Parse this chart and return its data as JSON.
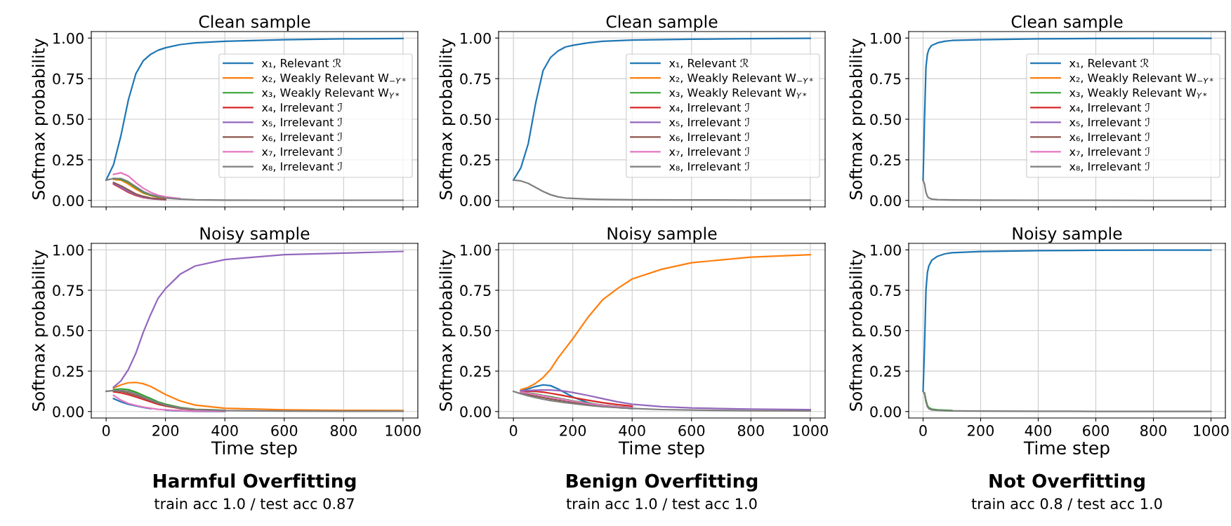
{
  "chart_data": [
    {
      "type": "line",
      "title": "Clean sample",
      "ylabel": "Softmax probability",
      "tick_labels": "y",
      "grid": true,
      "legend": "right",
      "xlim": [
        -50,
        1050
      ],
      "ylim": [
        -0.04,
        1.04
      ],
      "xticks": [
        {
          "value": 0,
          "label": null
        },
        {
          "value": 200,
          "label": null
        },
        {
          "value": 400,
          "label": null
        },
        {
          "value": 600,
          "label": null
        },
        {
          "value": 800,
          "label": null
        },
        {
          "value": 1000,
          "label": null
        }
      ],
      "yticks": [
        {
          "value": 0,
          "label": "0.00"
        },
        {
          "value": 0.25,
          "label": "0.25"
        },
        {
          "value": 0.5,
          "label": "0.50"
        },
        {
          "value": 0.75,
          "label": "0.75"
        },
        {
          "value": 1,
          "label": "1.00"
        }
      ],
      "x": [
        0,
        25,
        50,
        75,
        100,
        125,
        150,
        175,
        200,
        250,
        300,
        400,
        600,
        800,
        1000
      ],
      "series": [
        {
          "name": "x₁, Relevant ℛ",
          "color": "#1f77b4",
          "values": [
            0.125,
            0.22,
            0.4,
            0.62,
            0.78,
            0.86,
            0.9,
            0.925,
            0.94,
            0.96,
            0.97,
            0.98,
            0.99,
            0.995,
            0.997
          ]
        },
        {
          "name": "x₂, Weakly Relevant W$_{−Y*}$",
          "color": "#ff7f0e",
          "values": [
            null,
            0.13,
            0.125,
            0.1,
            0.07,
            0.045,
            0.03,
            0.02,
            0.012,
            null,
            null,
            null,
            null,
            null,
            null
          ]
        },
        {
          "name": "x₃, Weakly Relevant W$_{Y*}$",
          "color": "#2ca02c",
          "values": [
            null,
            0.135,
            0.13,
            0.11,
            0.08,
            0.05,
            0.033,
            0.022,
            null,
            null,
            null,
            null,
            null,
            null,
            null
          ]
        },
        {
          "name": "x₄, Irrelevant ℐ",
          "color": "#d62728",
          "values": [
            null,
            0.1,
            0.075,
            0.05,
            0.03,
            0.018,
            0.011,
            0.007,
            0.005,
            null,
            null,
            null,
            null,
            null,
            null
          ]
        },
        {
          "name": "x₅, Irrelevant ℐ",
          "color": "#9467bd",
          "values": [
            null,
            0.105,
            0.08,
            0.055,
            0.035,
            0.02,
            0.012,
            0.008,
            0.005,
            null,
            null,
            null,
            null,
            null,
            null
          ]
        },
        {
          "name": "x₆, Irrelevant ℐ",
          "color": "#8c564b",
          "values": [
            null,
            0.11,
            0.09,
            0.065,
            0.04,
            0.025,
            0.015,
            0.01,
            0.006,
            null,
            null,
            null,
            null,
            null,
            null
          ]
        },
        {
          "name": "x₇, Irrelevant ℐ",
          "color": "#e377c2",
          "values": [
            null,
            0.16,
            0.17,
            0.15,
            0.11,
            0.075,
            0.05,
            0.032,
            0.022,
            0.011,
            null,
            null,
            null,
            null,
            null
          ]
        },
        {
          "name": "x₈, Irrelevant ℐ",
          "color": "#7f7f7f",
          "values": [
            0.125,
            0.135,
            0.135,
            0.115,
            0.085,
            0.055,
            0.036,
            0.024,
            0.015,
            0.008,
            0.004,
            0.002,
            0.001,
            0.001,
            0.001
          ]
        }
      ]
    },
    {
      "type": "line",
      "title": "Clean sample",
      "ylabel": "Softmax probability",
      "tick_labels": "y",
      "grid": true,
      "legend": "right",
      "xlim": [
        -50,
        1050
      ],
      "ylim": [
        -0.04,
        1.04
      ],
      "xticks": [
        {
          "value": 0,
          "label": null
        },
        {
          "value": 200,
          "label": null
        },
        {
          "value": 400,
          "label": null
        },
        {
          "value": 600,
          "label": null
        },
        {
          "value": 800,
          "label": null
        },
        {
          "value": 1000,
          "label": null
        }
      ],
      "yticks": [
        {
          "value": 0,
          "label": "0.00"
        },
        {
          "value": 0.25,
          "label": "0.25"
        },
        {
          "value": 0.5,
          "label": "0.50"
        },
        {
          "value": 0.75,
          "label": "0.75"
        },
        {
          "value": 1,
          "label": "1.00"
        }
      ],
      "x": [
        0,
        25,
        50,
        75,
        100,
        125,
        150,
        175,
        200,
        250,
        300,
        400,
        600,
        800,
        1000
      ],
      "series": [
        {
          "name": "x₁, Relevant ℛ",
          "color": "#1f77b4",
          "values": [
            0.125,
            0.2,
            0.35,
            0.6,
            0.8,
            0.88,
            0.92,
            0.945,
            0.955,
            0.97,
            0.98,
            0.988,
            0.993,
            0.996,
            0.998
          ]
        },
        {
          "name": "x₂, Weakly Relevant W$_{−Y*}$",
          "color": "#ff7f0e",
          "values": [
            null,
            null,
            null,
            null,
            null,
            null,
            null,
            null,
            null,
            null,
            null,
            null,
            null,
            null,
            null
          ]
        },
        {
          "name": "x₃, Weakly Relevant W$_{Y*}$",
          "color": "#2ca02c",
          "values": [
            null,
            null,
            null,
            null,
            null,
            null,
            null,
            null,
            null,
            null,
            null,
            null,
            null,
            null,
            null
          ]
        },
        {
          "name": "x₄, Irrelevant ℐ",
          "color": "#d62728",
          "values": [
            null,
            null,
            null,
            null,
            null,
            null,
            null,
            null,
            null,
            null,
            null,
            null,
            null,
            null,
            null
          ]
        },
        {
          "name": "x₅, Irrelevant ℐ",
          "color": "#9467bd",
          "values": [
            null,
            null,
            null,
            null,
            null,
            null,
            null,
            null,
            null,
            null,
            null,
            null,
            null,
            null,
            null
          ]
        },
        {
          "name": "x₆, Irrelevant ℐ",
          "color": "#8c564b",
          "values": [
            null,
            null,
            null,
            null,
            null,
            null,
            null,
            null,
            null,
            null,
            null,
            null,
            null,
            null,
            null
          ]
        },
        {
          "name": "x₇, Irrelevant ℐ",
          "color": "#e377c2",
          "values": [
            null,
            null,
            null,
            null,
            null,
            null,
            null,
            null,
            null,
            null,
            null,
            null,
            null,
            null,
            null
          ]
        },
        {
          "name": "x₈, Irrelevant ℐ",
          "color": "#7f7f7f",
          "values": [
            0.125,
            0.12,
            0.105,
            0.08,
            0.055,
            0.035,
            0.022,
            0.015,
            0.012,
            0.008,
            0.006,
            0.004,
            0.003,
            0.002,
            0.002
          ]
        }
      ]
    },
    {
      "type": "line",
      "title": "Clean sample",
      "ylabel": "Softmax probability",
      "tick_labels": "y",
      "grid": true,
      "legend": "right",
      "xlim": [
        -50,
        1050
      ],
      "ylim": [
        -0.04,
        1.04
      ],
      "xticks": [
        {
          "value": 0,
          "label": null
        },
        {
          "value": 200,
          "label": null
        },
        {
          "value": 400,
          "label": null
        },
        {
          "value": 600,
          "label": null
        },
        {
          "value": 800,
          "label": null
        },
        {
          "value": 1000,
          "label": null
        }
      ],
      "yticks": [
        {
          "value": 0,
          "label": "0.00"
        },
        {
          "value": 0.25,
          "label": "0.25"
        },
        {
          "value": 0.5,
          "label": "0.50"
        },
        {
          "value": 0.75,
          "label": "0.75"
        },
        {
          "value": 1,
          "label": "1.00"
        }
      ],
      "x": [
        0,
        5,
        10,
        15,
        20,
        30,
        50,
        75,
        100,
        200,
        400,
        600,
        800,
        1000
      ],
      "series": [
        {
          "name": "x₁, Relevant ℛ",
          "color": "#1f77b4",
          "values": [
            0.125,
            0.5,
            0.82,
            0.9,
            0.93,
            0.955,
            0.97,
            0.98,
            0.985,
            0.99,
            0.995,
            0.997,
            0.998,
            0.998
          ]
        },
        {
          "name": "x₂, Weakly Relevant W$_{−Y*}$",
          "color": "#ff7f0e",
          "values": [
            null,
            null,
            null,
            null,
            null,
            null,
            null,
            null,
            null,
            null,
            null,
            null,
            null,
            null
          ]
        },
        {
          "name": "x₃, Weakly Relevant W$_{Y*}$",
          "color": "#2ca02c",
          "values": [
            null,
            null,
            null,
            null,
            null,
            null,
            null,
            null,
            null,
            null,
            null,
            null,
            null,
            null
          ]
        },
        {
          "name": "x₄, Irrelevant ℐ",
          "color": "#d62728",
          "values": [
            null,
            null,
            null,
            null,
            null,
            null,
            null,
            null,
            null,
            null,
            null,
            null,
            null,
            null
          ]
        },
        {
          "name": "x₅, Irrelevant ℐ",
          "color": "#9467bd",
          "values": [
            null,
            null,
            null,
            null,
            null,
            null,
            null,
            null,
            null,
            null,
            null,
            null,
            null,
            null
          ]
        },
        {
          "name": "x₆, Irrelevant ℐ",
          "color": "#8c564b",
          "values": [
            null,
            null,
            null,
            null,
            null,
            null,
            null,
            null,
            null,
            null,
            null,
            null,
            null,
            null
          ]
        },
        {
          "name": "x₇, Irrelevant ℐ",
          "color": "#e377c2",
          "values": [
            null,
            null,
            null,
            null,
            null,
            null,
            null,
            null,
            null,
            null,
            null,
            null,
            null,
            null
          ]
        },
        {
          "name": "x₈, Irrelevant ℐ",
          "color": "#7f7f7f",
          "values": [
            0.125,
            0.1,
            0.05,
            0.025,
            0.015,
            0.008,
            0.005,
            0.004,
            0.003,
            0.002,
            0.001,
            0.001,
            0,
            0
          ]
        }
      ]
    },
    {
      "type": "line",
      "title": "Noisy sample",
      "xlabel": "Time step",
      "ylabel": "Softmax probability",
      "grid": true,
      "xlim": [
        -50,
        1050
      ],
      "ylim": [
        -0.04,
        1.04
      ],
      "xticks": [
        0,
        200,
        400,
        600,
        800,
        1000
      ],
      "yticks": [
        {
          "value": 0,
          "label": "0.00"
        },
        {
          "value": 0.25,
          "label": "0.25"
        },
        {
          "value": 0.5,
          "label": "0.50"
        },
        {
          "value": 0.75,
          "label": "0.75"
        },
        {
          "value": 1,
          "label": "1.00"
        }
      ],
      "annotations": [
        "Harmful Overfitting",
        "train acc 1.0 / test acc 0.87"
      ],
      "x": [
        0,
        25,
        50,
        75,
        100,
        125,
        150,
        175,
        200,
        250,
        300,
        400,
        600,
        800,
        1000
      ],
      "series": [
        {
          "color": "#1f77b4",
          "values": [
            null,
            0.08,
            0.06,
            0.045,
            0.035,
            0.025,
            0.018,
            null,
            0.008,
            0.004,
            0.002,
            0.001,
            null,
            null,
            null
          ]
        },
        {
          "color": "#ff7f0e",
          "values": [
            null,
            0.145,
            0.165,
            0.178,
            0.18,
            0.172,
            0.155,
            0.13,
            0.105,
            0.065,
            0.04,
            0.02,
            0.01,
            0.007,
            0.006
          ]
        },
        {
          "color": "#2ca02c",
          "values": [
            null,
            0.135,
            0.14,
            0.135,
            0.12,
            0.1,
            0.08,
            0.06,
            0.045,
            0.025,
            0.014,
            0.007,
            null,
            null,
            null
          ]
        },
        {
          "color": "#d62728",
          "values": [
            null,
            0.122,
            0.115,
            0.105,
            0.09,
            0.075,
            0.06,
            0.045,
            0.034,
            0.018,
            0.01,
            0.005,
            null,
            null,
            null
          ]
        },
        {
          "color": "#9467bd",
          "values": [
            null,
            0.15,
            0.19,
            0.26,
            0.36,
            0.49,
            0.6,
            0.7,
            0.76,
            0.85,
            0.9,
            0.94,
            0.97,
            0.98,
            0.99
          ]
        },
        {
          "color": "#8c564b",
          "values": [
            null,
            0.128,
            0.125,
            0.115,
            0.1,
            0.085,
            0.067,
            0.05,
            0.038,
            0.02,
            0.011,
            0.005,
            null,
            null,
            null
          ]
        },
        {
          "color": "#e377c2",
          "values": [
            null,
            0.1,
            0.07,
            0.05,
            0.038,
            0.028,
            0.02,
            0.014,
            0.01,
            0.005,
            0.003,
            0.002,
            null,
            null,
            null
          ]
        },
        {
          "color": "#7f7f7f",
          "values": [
            0.125,
            0.13,
            0.13,
            0.125,
            0.11,
            0.09,
            0.07,
            0.055,
            0.04,
            0.022,
            0.012,
            0.006,
            0.003,
            0.002,
            0.002
          ]
        }
      ]
    },
    {
      "type": "line",
      "title": "Noisy sample",
      "xlabel": "Time step",
      "ylabel": "Softmax probability",
      "grid": true,
      "xlim": [
        -50,
        1050
      ],
      "ylim": [
        -0.04,
        1.04
      ],
      "xticks": [
        0,
        200,
        400,
        600,
        800,
        1000
      ],
      "yticks": [
        {
          "value": 0,
          "label": "0.00"
        },
        {
          "value": 0.25,
          "label": "0.25"
        },
        {
          "value": 0.5,
          "label": "0.50"
        },
        {
          "value": 0.75,
          "label": "0.75"
        },
        {
          "value": 1,
          "label": "1.00"
        }
      ],
      "annotations": [
        "Benign Overfitting",
        "train acc 1.0 / test acc 1.0"
      ],
      "x": [
        0,
        25,
        50,
        75,
        100,
        125,
        150,
        175,
        200,
        250,
        300,
        350,
        400,
        500,
        600,
        800,
        1000
      ],
      "series": [
        {
          "color": "#1f77b4",
          "values": [
            null,
            0.13,
            0.14,
            0.155,
            0.165,
            0.16,
            0.14,
            0.115,
            0.09,
            0.055,
            0.035,
            0.025,
            0.018,
            null,
            null,
            null,
            null
          ]
        },
        {
          "color": "#ff7f0e",
          "values": [
            null,
            0.135,
            0.15,
            0.175,
            0.21,
            0.26,
            0.33,
            0.39,
            0.45,
            0.58,
            0.69,
            0.76,
            0.82,
            0.88,
            0.92,
            0.955,
            0.97
          ]
        },
        {
          "color": "#2ca02c",
          "values": [
            null,
            0.12,
            0.115,
            0.108,
            0.1,
            0.092,
            0.083,
            0.075,
            0.066,
            0.052,
            0.04,
            0.031,
            0.025,
            null,
            null,
            null,
            null
          ]
        },
        {
          "color": "#d62728",
          "values": [
            null,
            0.125,
            0.125,
            0.124,
            0.12,
            0.113,
            0.105,
            0.096,
            0.087,
            0.07,
            0.055,
            0.043,
            0.034,
            null,
            null,
            null,
            null
          ]
        },
        {
          "color": "#9467bd",
          "values": [
            null,
            0.128,
            0.13,
            0.132,
            0.133,
            0.133,
            0.13,
            0.125,
            0.118,
            0.1,
            0.08,
            0.06,
            0.045,
            0.03,
            0.022,
            0.015,
            0.012
          ]
        },
        {
          "color": "#8c564b",
          "values": [
            null,
            0.115,
            0.105,
            0.095,
            0.086,
            0.078,
            0.07,
            0.063,
            0.056,
            0.044,
            0.034,
            0.027,
            0.021,
            null,
            null,
            null,
            null
          ]
        },
        {
          "color": "#e377c2",
          "values": [
            null,
            0.12,
            0.113,
            0.105,
            0.097,
            0.088,
            0.08,
            0.072,
            0.064,
            0.05,
            0.039,
            0.03,
            0.024,
            null,
            null,
            null,
            null
          ]
        },
        {
          "color": "#7f7f7f",
          "values": [
            0.125,
            0.11,
            0.097,
            0.086,
            0.076,
            0.068,
            0.061,
            0.055,
            0.049,
            0.038,
            0.03,
            0.024,
            0.019,
            0.012,
            0.009,
            0.005,
            0.004
          ]
        }
      ]
    },
    {
      "type": "line",
      "title": "Noisy sample",
      "xlabel": "Time step",
      "ylabel": "Softmax probability",
      "grid": true,
      "xlim": [
        -50,
        1050
      ],
      "ylim": [
        -0.04,
        1.04
      ],
      "xticks": [
        0,
        200,
        400,
        600,
        800,
        1000
      ],
      "yticks": [
        {
          "value": 0,
          "label": "0.00"
        },
        {
          "value": 0.25,
          "label": "0.25"
        },
        {
          "value": 0.5,
          "label": "0.50"
        },
        {
          "value": 0.75,
          "label": "0.75"
        },
        {
          "value": 1,
          "label": "1.00"
        }
      ],
      "annotations": [
        "Not Overfitting",
        "train acc 0.8 / test acc 1.0"
      ],
      "x": [
        0,
        5,
        10,
        15,
        20,
        30,
        50,
        75,
        100,
        200,
        400,
        600,
        800,
        1000
      ],
      "series": [
        {
          "color": "#1f77b4",
          "values": [
            0.125,
            0.4,
            0.75,
            0.86,
            0.9,
            0.935,
            0.96,
            0.975,
            0.982,
            0.99,
            0.995,
            0.997,
            0.998,
            0.998
          ]
        },
        {
          "color": "#ff7f0e",
          "values": [
            null,
            null,
            null,
            null,
            null,
            null,
            null,
            null,
            null,
            null,
            null,
            null,
            null,
            null
          ]
        },
        {
          "color": "#2ca02c",
          "values": [
            null,
            0.115,
            0.07,
            0.038,
            0.024,
            0.015,
            0.01,
            0.008,
            0.006,
            null,
            null,
            null,
            null,
            null
          ]
        },
        {
          "color": "#d62728",
          "values": [
            null,
            null,
            null,
            null,
            null,
            null,
            null,
            null,
            null,
            null,
            null,
            null,
            null,
            null
          ]
        },
        {
          "color": "#9467bd",
          "values": [
            null,
            null,
            null,
            null,
            null,
            null,
            null,
            null,
            null,
            null,
            null,
            null,
            null,
            null
          ]
        },
        {
          "color": "#8c564b",
          "values": [
            null,
            null,
            null,
            null,
            null,
            null,
            null,
            null,
            null,
            null,
            null,
            null,
            null,
            null
          ]
        },
        {
          "color": "#e377c2",
          "values": [
            null,
            null,
            null,
            null,
            null,
            null,
            null,
            null,
            null,
            null,
            null,
            null,
            null,
            null
          ]
        },
        {
          "color": "#7f7f7f",
          "values": [
            0.125,
            0.11,
            0.06,
            0.03,
            0.018,
            0.01,
            0.007,
            0.005,
            0.004,
            0.003,
            0.002,
            0.001,
            0.001,
            0.001
          ]
        }
      ]
    }
  ]
}
